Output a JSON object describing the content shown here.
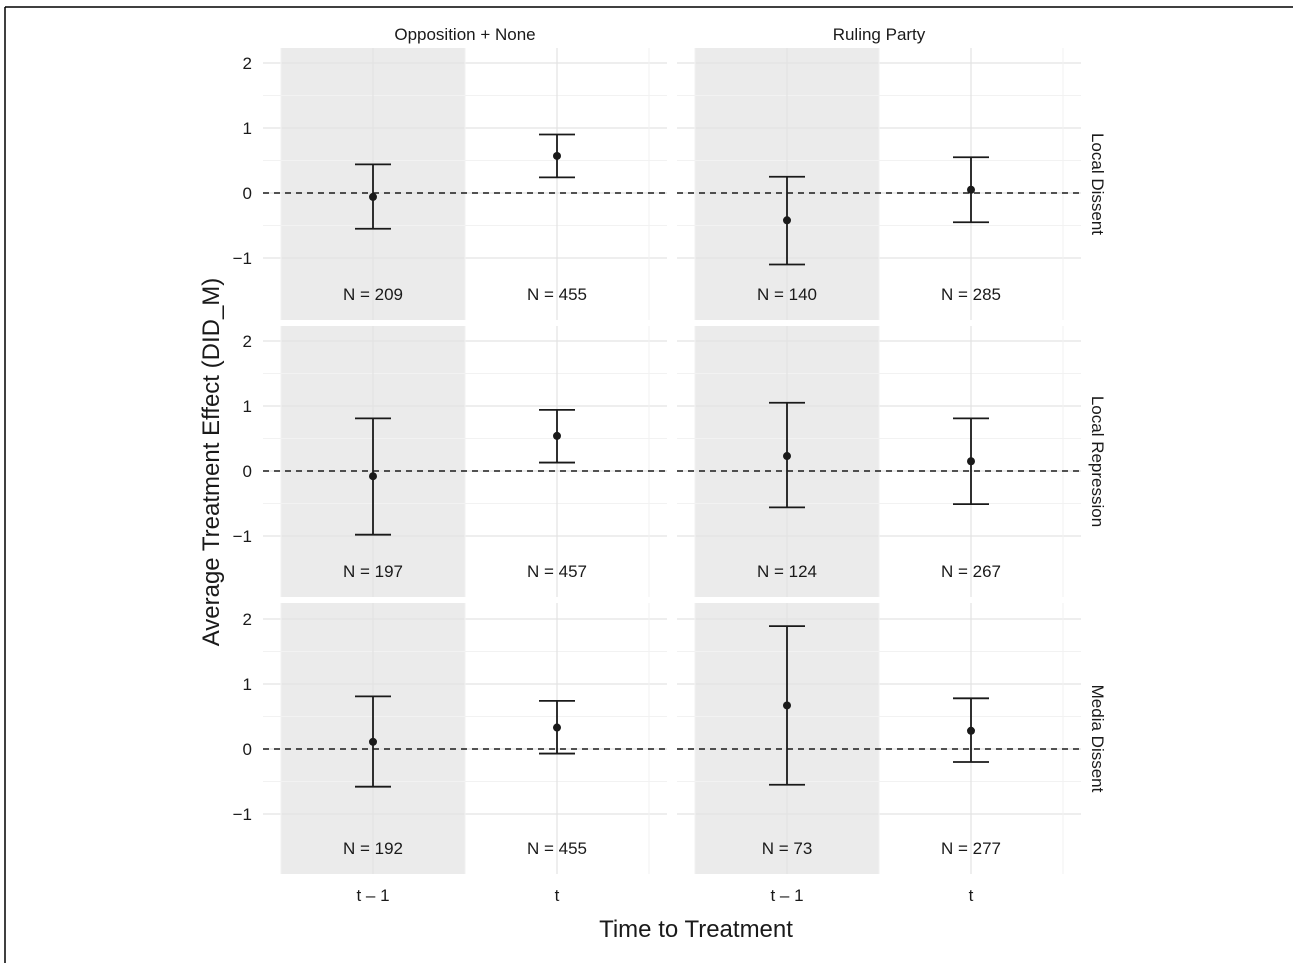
{
  "chart_data": {
    "type": "errorbar",
    "xlabel": "Time to Treatment",
    "ylabel": "Average Treatment Effect (DID_M)",
    "x_categories": [
      "t – 1",
      "t"
    ],
    "y_ticks": [
      2,
      1,
      0,
      -1
    ],
    "y_tick_labels": [
      "2",
      "1",
      "0",
      "−1"
    ],
    "ylim": [
      -1.6,
      2.2
    ],
    "reference_line": 0,
    "shaded_category": "t – 1",
    "column_facets": [
      "Opposition + None",
      "Ruling Party"
    ],
    "row_facets": [
      "Local Dissent",
      "Local Repression",
      "Media Dissent"
    ],
    "panels": [
      {
        "column": "Opposition + None",
        "row": "Local Dissent",
        "points": [
          {
            "x": "t – 1",
            "estimate": -0.06,
            "lower": -0.55,
            "upper": 0.44,
            "n_label": "N =  209"
          },
          {
            "x": "t",
            "estimate": 0.57,
            "lower": 0.24,
            "upper": 0.9,
            "n_label": "N =  455"
          }
        ]
      },
      {
        "column": "Ruling Party",
        "row": "Local Dissent",
        "points": [
          {
            "x": "t – 1",
            "estimate": -0.42,
            "lower": -1.1,
            "upper": 0.25,
            "n_label": "N =  140"
          },
          {
            "x": "t",
            "estimate": 0.05,
            "lower": -0.45,
            "upper": 0.55,
            "n_label": "N =  285"
          }
        ]
      },
      {
        "column": "Opposition + None",
        "row": "Local Repression",
        "points": [
          {
            "x": "t – 1",
            "estimate": -0.08,
            "lower": -0.98,
            "upper": 0.81,
            "n_label": "N =  197"
          },
          {
            "x": "t",
            "estimate": 0.54,
            "lower": 0.13,
            "upper": 0.94,
            "n_label": "N =  457"
          }
        ]
      },
      {
        "column": "Ruling Party",
        "row": "Local Repression",
        "points": [
          {
            "x": "t – 1",
            "estimate": 0.23,
            "lower": -0.56,
            "upper": 1.05,
            "n_label": "N =  124"
          },
          {
            "x": "t",
            "estimate": 0.15,
            "lower": -0.51,
            "upper": 0.81,
            "n_label": "N =  267"
          }
        ]
      },
      {
        "column": "Opposition + None",
        "row": "Media Dissent",
        "points": [
          {
            "x": "t – 1",
            "estimate": 0.11,
            "lower": -0.58,
            "upper": 0.81,
            "n_label": "N =  192"
          },
          {
            "x": "t",
            "estimate": 0.33,
            "lower": -0.07,
            "upper": 0.74,
            "n_label": "N =  455"
          }
        ]
      },
      {
        "column": "Ruling Party",
        "row": "Media Dissent",
        "points": [
          {
            "x": "t – 1",
            "estimate": 0.67,
            "lower": -0.55,
            "upper": 1.89,
            "n_label": "N =  73"
          },
          {
            "x": "t",
            "estimate": 0.28,
            "lower": -0.2,
            "upper": 0.78,
            "n_label": "N =  277"
          }
        ]
      }
    ]
  }
}
